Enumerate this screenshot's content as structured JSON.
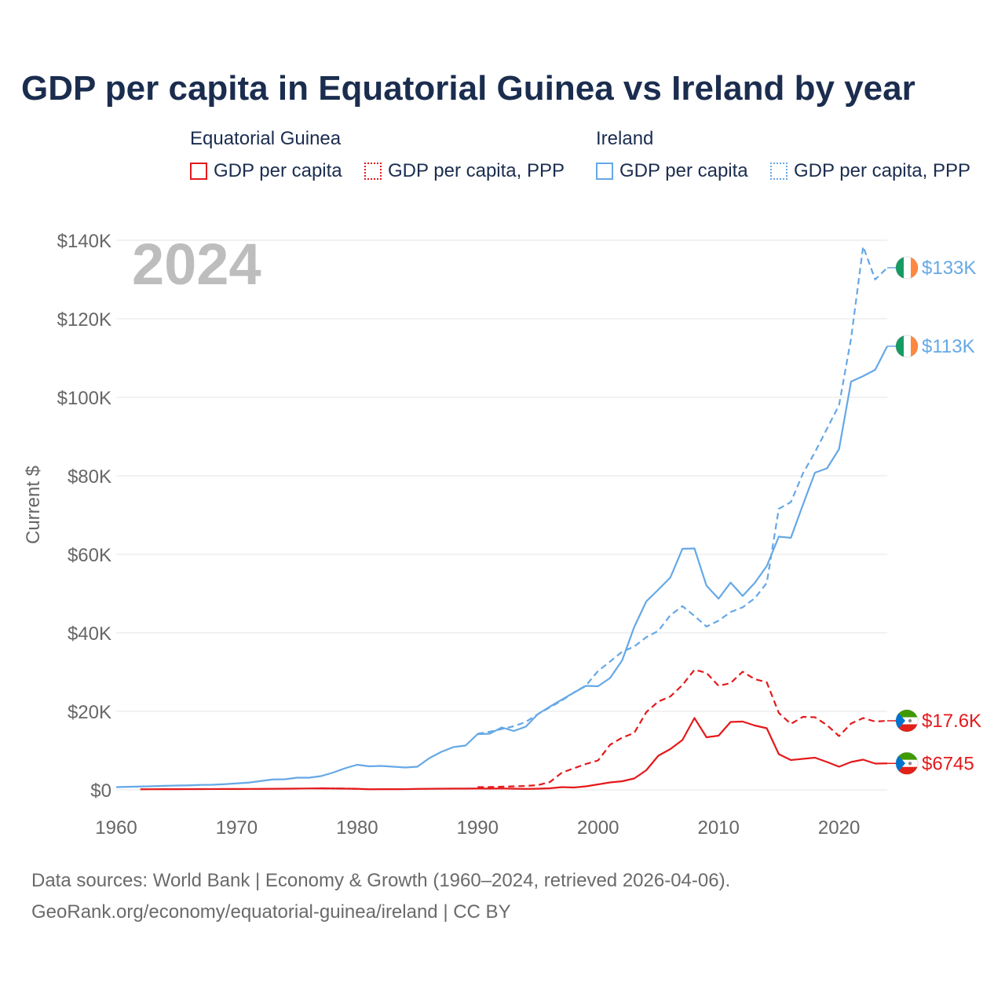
{
  "title": "GDP per capita in Equatorial Guinea vs Ireland by year",
  "legend": {
    "groups": [
      {
        "name": "Equatorial Guinea",
        "color": "#e4191b",
        "items": [
          {
            "label": "GDP per capita",
            "style": "solid"
          },
          {
            "label": "GDP per capita, PPP",
            "style": "dotted"
          }
        ]
      },
      {
        "name": "Ireland",
        "color": "#65a8e6",
        "items": [
          {
            "label": "GDP per capita",
            "style": "solid"
          },
          {
            "label": "GDP per capita, PPP",
            "style": "dotted"
          }
        ]
      }
    ]
  },
  "year_label": "2024",
  "footer": {
    "line1": "Data sources: World Bank | Economy & Growth (1960–2024, retrieved 2026-04-06).",
    "line2": "GeoRank.org/economy/equatorial-guinea/ireland | CC BY"
  },
  "chart_data": {
    "type": "line",
    "title": "GDP per capita in Equatorial Guinea vs Ireland by year",
    "xlabel": "",
    "ylabel": "Current $",
    "xlim": [
      1960,
      2024
    ],
    "ylim": [
      0,
      140000
    ],
    "x_ticks": [
      1960,
      1970,
      1980,
      1990,
      2000,
      2010,
      2020
    ],
    "x_tick_labels": [
      "1960",
      "1970",
      "1980",
      "1990",
      "2000",
      "2010",
      "2020"
    ],
    "y_ticks": [
      0,
      20000,
      40000,
      60000,
      80000,
      100000,
      120000,
      140000
    ],
    "y_tick_labels": [
      "$0",
      "$20K",
      "$40K",
      "$60K",
      "$80K",
      "$100K",
      "$120K",
      "$140K"
    ],
    "grid": true,
    "series": [
      {
        "name": "Ireland — GDP per capita, PPP",
        "country": "Ireland",
        "color": "#65a8e6",
        "dash": "dashed",
        "end_label": "$133K",
        "x": [
          1990,
          1991,
          1992,
          1993,
          1994,
          1995,
          1996,
          1997,
          1998,
          1999,
          2000,
          2001,
          2002,
          2003,
          2004,
          2005,
          2006,
          2007,
          2008,
          2009,
          2010,
          2011,
          2012,
          2013,
          2014,
          2015,
          2016,
          2017,
          2018,
          2019,
          2020,
          2021,
          2022,
          2023,
          2024
        ],
        "values": [
          14300,
          14800,
          15500,
          16200,
          17300,
          19300,
          21000,
          22800,
          24800,
          26600,
          30300,
          32700,
          35200,
          36500,
          38900,
          40500,
          44500,
          46800,
          44300,
          41600,
          43100,
          45300,
          46500,
          48800,
          52700,
          71600,
          73300,
          80600,
          86000,
          92000,
          98000,
          115000,
          138400,
          130000,
          133000
        ]
      },
      {
        "name": "Ireland — GDP per capita",
        "country": "Ireland",
        "color": "#65a8e6",
        "dash": "solid",
        "end_label": "$113K",
        "x": [
          1960,
          1961,
          1962,
          1963,
          1964,
          1965,
          1966,
          1967,
          1968,
          1969,
          1970,
          1971,
          1972,
          1973,
          1974,
          1975,
          1976,
          1977,
          1978,
          1979,
          1980,
          1981,
          1982,
          1983,
          1984,
          1985,
          1986,
          1987,
          1988,
          1989,
          1990,
          1991,
          1992,
          1993,
          1994,
          1995,
          1996,
          1997,
          1998,
          1999,
          2000,
          2001,
          2002,
          2003,
          2004,
          2005,
          2006,
          2007,
          2008,
          2009,
          2010,
          2011,
          2012,
          2013,
          2014,
          2015,
          2016,
          2017,
          2018,
          2019,
          2020,
          2021,
          2022,
          2023,
          2024
        ],
        "values": [
          700,
          780,
          850,
          920,
          1030,
          1100,
          1150,
          1260,
          1300,
          1450,
          1650,
          1850,
          2250,
          2650,
          2700,
          3100,
          3100,
          3500,
          4400,
          5500,
          6400,
          6000,
          6100,
          5900,
          5700,
          5900,
          8100,
          9700,
          10900,
          11300,
          14200,
          14300,
          15900,
          15000,
          16100,
          19300,
          21200,
          23000,
          24800,
          26500,
          26400,
          28500,
          33000,
          41500,
          48000,
          51000,
          54100,
          61400,
          61500,
          52000,
          48700,
          52800,
          49400,
          52700,
          57000,
          64500,
          64200,
          72600,
          80800,
          81900,
          86800,
          104000,
          105400,
          107000,
          113000
        ]
      },
      {
        "name": "Equatorial Guinea — GDP per capita, PPP",
        "country": "Equatorial Guinea",
        "color": "#e4191b",
        "dash": "dashed",
        "end_label": "$17.6K",
        "x": [
          1990,
          1991,
          1992,
          1993,
          1994,
          1995,
          1996,
          1997,
          1998,
          1999,
          2000,
          2001,
          2002,
          2003,
          2004,
          2005,
          2006,
          2007,
          2008,
          2009,
          2010,
          2011,
          2012,
          2013,
          2014,
          2015,
          2016,
          2017,
          2018,
          2019,
          2020,
          2021,
          2022,
          2023,
          2024
        ],
        "values": [
          700,
          720,
          800,
          900,
          1000,
          1200,
          2000,
          4400,
          5500,
          6600,
          7500,
          11500,
          13300,
          14500,
          19800,
          22500,
          23800,
          26700,
          30600,
          29800,
          26500,
          27200,
          30100,
          28200,
          27400,
          19600,
          16800,
          18600,
          18500,
          16500,
          13700,
          16900,
          18300,
          17400,
          17600
        ]
      },
      {
        "name": "Equatorial Guinea — GDP per capita",
        "country": "Equatorial Guinea",
        "color": "#e4191b",
        "dash": "solid",
        "end_label": "$6745",
        "x": [
          1962,
          1963,
          1964,
          1965,
          1966,
          1967,
          1968,
          1969,
          1970,
          1971,
          1972,
          1973,
          1974,
          1975,
          1976,
          1977,
          1978,
          1979,
          1980,
          1981,
          1982,
          1983,
          1984,
          1985,
          1986,
          1987,
          1988,
          1989,
          1990,
          1991,
          1992,
          1993,
          1994,
          1995,
          1996,
          1997,
          1998,
          1999,
          2000,
          2001,
          2002,
          2003,
          2004,
          2005,
          2006,
          2007,
          2008,
          2009,
          2010,
          2011,
          2012,
          2013,
          2014,
          2015,
          2016,
          2017,
          2018,
          2019,
          2020,
          2021,
          2022,
          2023,
          2024
        ],
        "values": [
          150,
          160,
          170,
          180,
          190,
          200,
          210,
          220,
          230,
          240,
          250,
          270,
          300,
          330,
          360,
          400,
          300,
          250,
          280,
          150,
          180,
          170,
          190,
          250,
          280,
          300,
          320,
          330,
          350,
          330,
          360,
          300,
          250,
          300,
          400,
          700,
          600,
          900,
          1400,
          1900,
          2200,
          2900,
          5000,
          8700,
          10400,
          12700,
          18300,
          13400,
          13800,
          17300,
          17400,
          16400,
          15700,
          9100,
          7600,
          7900,
          8200,
          7100,
          5900,
          7100,
          7700,
          6700,
          6745
        ]
      }
    ],
    "gaps": [
      {
        "series": "Equatorial Guinea — GDP per capita",
        "from": 1977,
        "to": 1980,
        "style": "dash-dot"
      }
    ]
  }
}
